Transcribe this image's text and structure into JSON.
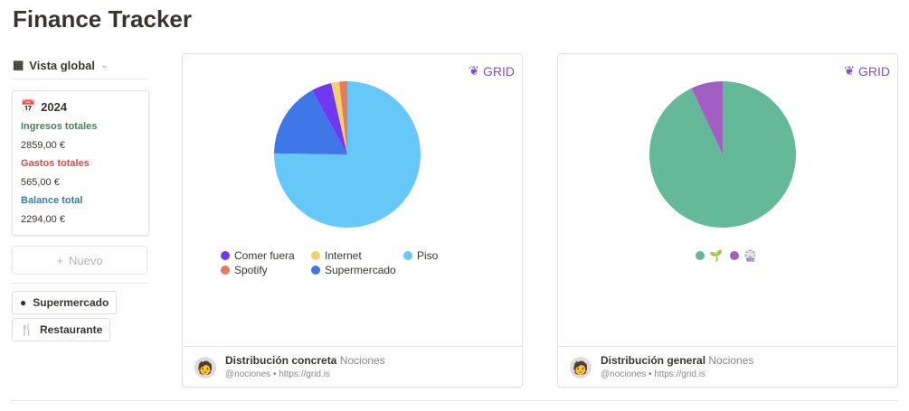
{
  "title": "Finance Tracker",
  "view": {
    "label": "Vista global"
  },
  "summary": {
    "year": "2024",
    "income_label": "Ingresos totales",
    "income": "2859,00 €",
    "expense_label": "Gastos totales",
    "expense": "565,00 €",
    "balance_label": "Balance total",
    "balance": "2294,00 €"
  },
  "new_label": "Nuevo",
  "buttons": [
    {
      "label": "Supermercado",
      "icon": "apple-icon"
    },
    {
      "label": "Restaurante",
      "icon": "fork-knife-icon"
    }
  ],
  "embeds": [
    {
      "brand": "GRID",
      "title": "Distribución concreta",
      "owner": "Nociones",
      "sub": "@nociones • https://grid.is"
    },
    {
      "brand": "GRID",
      "title": "Distribución general",
      "owner": "Nociones",
      "sub": "@nociones • https://grid.is"
    }
  ],
  "chart_data": [
    {
      "type": "pie",
      "categories": [
        "Piso",
        "Supermercado",
        "Comer fuera",
        "Internet",
        "Spotify"
      ],
      "values": [
        425,
        95,
        25,
        10,
        10
      ],
      "colors": [
        "#66c8f8",
        "#3f76e8",
        "#7038f0",
        "#f2d06a",
        "#e57a5f"
      ],
      "legend_order": [
        "Comer fuera",
        "Internet",
        "Piso",
        "Spotify",
        "Supermercado"
      ]
    },
    {
      "type": "pie",
      "categories": [
        "🌱",
        "🎡"
      ],
      "values": [
        93,
        7
      ],
      "colors": [
        "#64b998",
        "#a35ec4"
      ]
    }
  ]
}
